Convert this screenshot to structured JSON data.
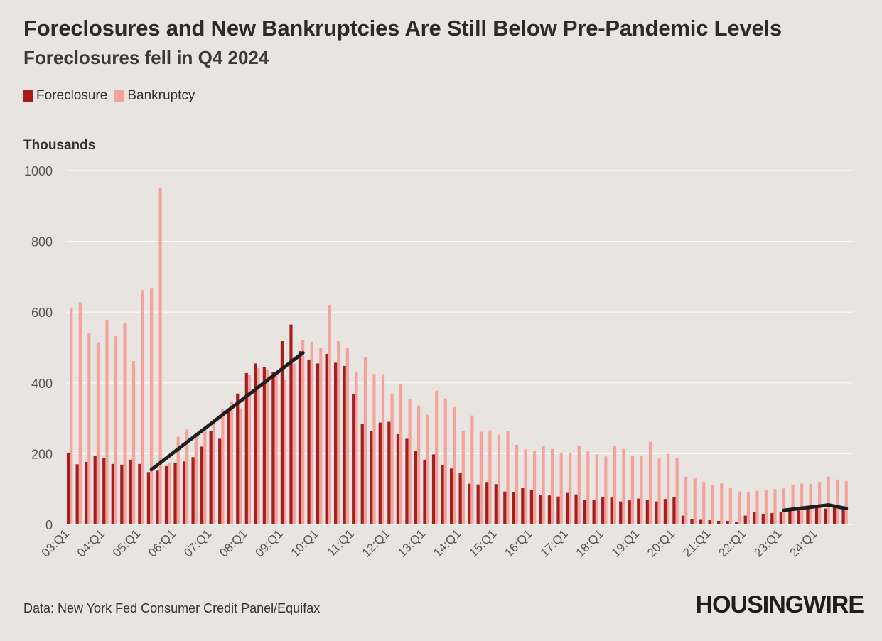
{
  "header": {
    "title": "Foreclosures and New Bankruptcies Are Still Below Pre-Pandemic Levels",
    "subtitle": "Foreclosures fell in Q4 2024"
  },
  "legend": {
    "foreclosure_label": "Foreclosure",
    "bankruptcy_label": "Bankruptcy"
  },
  "unit_label": "Thousands",
  "footer": {
    "source": "Data: New York Fed Consumer Credit Panel/Equifax",
    "logo_text": "HOUSINGWIRE"
  },
  "colors": {
    "foreclosure": "#a31f1f",
    "bankruptcy": "#f4a29e",
    "trend_line": "#1e1e1e",
    "grid": "#fbfaf8",
    "background": "#e8e4e0"
  },
  "chart_data": {
    "type": "bar",
    "title": "Foreclosures and New Bankruptcies Are Still Below Pre-Pandemic Levels",
    "subtitle": "Foreclosures fell in Q4 2024",
    "ylabel": "Thousands",
    "ylim": [
      0,
      1000
    ],
    "yticks": [
      0,
      200,
      400,
      600,
      800,
      1000
    ],
    "xtick_labels": [
      "03:Q1",
      "04:Q1",
      "05:Q1",
      "06:Q1",
      "07:Q1",
      "08:Q1",
      "09:Q1",
      "10:Q1",
      "11:Q1",
      "12:Q1",
      "13:Q1",
      "14:Q1",
      "15:Q1",
      "16:Q1",
      "17:Q1",
      "18:Q1",
      "19:Q1",
      "20:Q1",
      "21:Q1",
      "22:Q1",
      "23:Q1",
      "24:Q1"
    ],
    "grid": true,
    "legend_position": "top-left",
    "categories": [
      "03:Q1",
      "03:Q2",
      "03:Q3",
      "03:Q4",
      "04:Q1",
      "04:Q2",
      "04:Q3",
      "04:Q4",
      "05:Q1",
      "05:Q2",
      "05:Q3",
      "05:Q4",
      "06:Q1",
      "06:Q2",
      "06:Q3",
      "06:Q4",
      "07:Q1",
      "07:Q2",
      "07:Q3",
      "07:Q4",
      "08:Q1",
      "08:Q2",
      "08:Q3",
      "08:Q4",
      "09:Q1",
      "09:Q2",
      "09:Q3",
      "09:Q4",
      "10:Q1",
      "10:Q2",
      "10:Q3",
      "10:Q4",
      "11:Q1",
      "11:Q2",
      "11:Q3",
      "11:Q4",
      "12:Q1",
      "12:Q2",
      "12:Q3",
      "12:Q4",
      "13:Q1",
      "13:Q2",
      "13:Q3",
      "13:Q4",
      "14:Q1",
      "14:Q2",
      "14:Q3",
      "14:Q4",
      "15:Q1",
      "15:Q2",
      "15:Q3",
      "15:Q4",
      "16:Q1",
      "16:Q2",
      "16:Q3",
      "16:Q4",
      "17:Q1",
      "17:Q2",
      "17:Q3",
      "17:Q4",
      "18:Q1",
      "18:Q2",
      "18:Q3",
      "18:Q4",
      "19:Q1",
      "19:Q2",
      "19:Q3",
      "19:Q4",
      "20:Q1",
      "20:Q2",
      "20:Q3",
      "20:Q4",
      "21:Q1",
      "21:Q2",
      "21:Q3",
      "21:Q4",
      "22:Q1",
      "22:Q2",
      "22:Q3",
      "22:Q4",
      "23:Q1",
      "23:Q2",
      "23:Q3",
      "23:Q4",
      "24:Q1",
      "24:Q2",
      "24:Q3",
      "24:Q4"
    ],
    "series": [
      {
        "name": "Foreclosure",
        "values": [
          203,
          170,
          177,
          193,
          187,
          171,
          169,
          183,
          171,
          148,
          152,
          165,
          175,
          178,
          190,
          220,
          265,
          242,
          320,
          370,
          428,
          455,
          445,
          430,
          518,
          565,
          490,
          466,
          455,
          482,
          457,
          448,
          368,
          285,
          265,
          288,
          290,
          255,
          242,
          208,
          183,
          198,
          168,
          158,
          145,
          115,
          113,
          120,
          114,
          93,
          92,
          103,
          97,
          83,
          82,
          79,
          89,
          85,
          70,
          70,
          77,
          76,
          65,
          68,
          73,
          70,
          65,
          72,
          77,
          25,
          15,
          13,
          12,
          10,
          10,
          8,
          25,
          35,
          30,
          32,
          35,
          42,
          40,
          48,
          55,
          45,
          50,
          45
        ]
      },
      {
        "name": "Bankruptcy",
        "values": [
          612,
          628,
          540,
          515,
          578,
          532,
          570,
          462,
          662,
          668,
          950,
          175,
          248,
          268,
          258,
          272,
          292,
          325,
          348,
          328,
          422,
          442,
          438,
          428,
          408,
          455,
          520,
          516,
          498,
          620,
          518,
          498,
          432,
          472,
          425,
          425,
          370,
          398,
          354,
          336,
          310,
          378,
          356,
          332,
          265,
          308,
          262,
          266,
          254,
          264,
          225,
          212,
          207,
          222,
          213,
          202,
          202,
          223,
          206,
          198,
          192,
          222,
          213,
          195,
          193,
          233,
          186,
          200,
          188,
          135,
          132,
          120,
          112,
          117,
          102,
          93,
          92,
          95,
          98,
          100,
          102,
          113,
          115,
          115,
          120,
          135,
          127,
          122
        ]
      }
    ],
    "annotations": [
      {
        "type": "trend_line",
        "from": {
          "x": "05:Q2",
          "y": 155
        },
        "to": {
          "x": "09:Q3",
          "y": 485
        }
      },
      {
        "type": "trend_line",
        "from": {
          "x": "23:Q1",
          "y": 40
        },
        "to": {
          "x": "24:Q2",
          "y": 55
        }
      },
      {
        "type": "trend_line",
        "from": {
          "x": "24:Q2",
          "y": 55
        },
        "to": {
          "x": "24:Q4",
          "y": 45
        }
      }
    ]
  }
}
